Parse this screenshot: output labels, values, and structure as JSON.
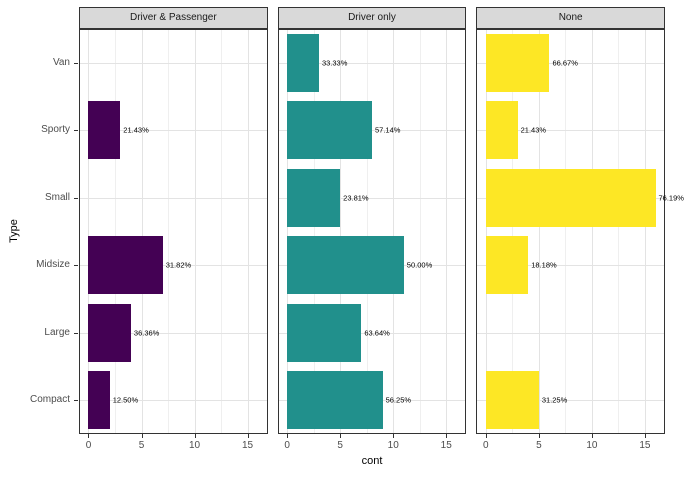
{
  "chart_data": {
    "type": "bar",
    "orientation": "horizontal",
    "facets": [
      "Driver & Passenger",
      "Driver only",
      "None"
    ],
    "categories_top_to_bottom": [
      "Van",
      "Sporty",
      "Small",
      "Midsize",
      "Large",
      "Compact"
    ],
    "series": [
      {
        "name": "Driver & Passenger",
        "color": "#440154",
        "values": [
          0,
          3,
          0,
          7,
          4,
          2
        ],
        "bar_labels": [
          "",
          "21.43%",
          "",
          "31.82%",
          "36.36%",
          "12.50%"
        ]
      },
      {
        "name": "Driver only",
        "color": "#21908C",
        "values": [
          3,
          8,
          5,
          11,
          7,
          9
        ],
        "bar_labels": [
          "33.33%",
          "57.14%",
          "23.81%",
          "50.00%",
          "63.64%",
          "56.25%"
        ]
      },
      {
        "name": "None",
        "color": "#FDE725",
        "values": [
          6,
          3,
          16,
          4,
          0,
          5
        ],
        "bar_labels": [
          "66.67%",
          "21.43%",
          "76.19%",
          "18.18%",
          "",
          "31.25%"
        ]
      }
    ],
    "xlabel": "cont",
    "ylabel": "Type",
    "x_ticks": [
      0,
      5,
      10,
      15
    ],
    "x_minor_ticks": [
      2.5,
      7.5,
      12.5
    ],
    "x_range": [
      -0.8,
      16.8
    ],
    "grid": "on",
    "legend": "none"
  },
  "colors": {
    "background": "#ffffff",
    "panel_background": "#ffffff",
    "panel_border": "#333333",
    "strip_background": "#d9d9d9",
    "strip_border": "#333333",
    "strip_text": "#1a1a1a",
    "grid_major": "#e3e3e3",
    "grid_minor": "#efefef",
    "axis_tick": "#333333",
    "axis_text": "#4d4d4d",
    "axis_title": "#000000",
    "bar_label_text": "#000000"
  }
}
